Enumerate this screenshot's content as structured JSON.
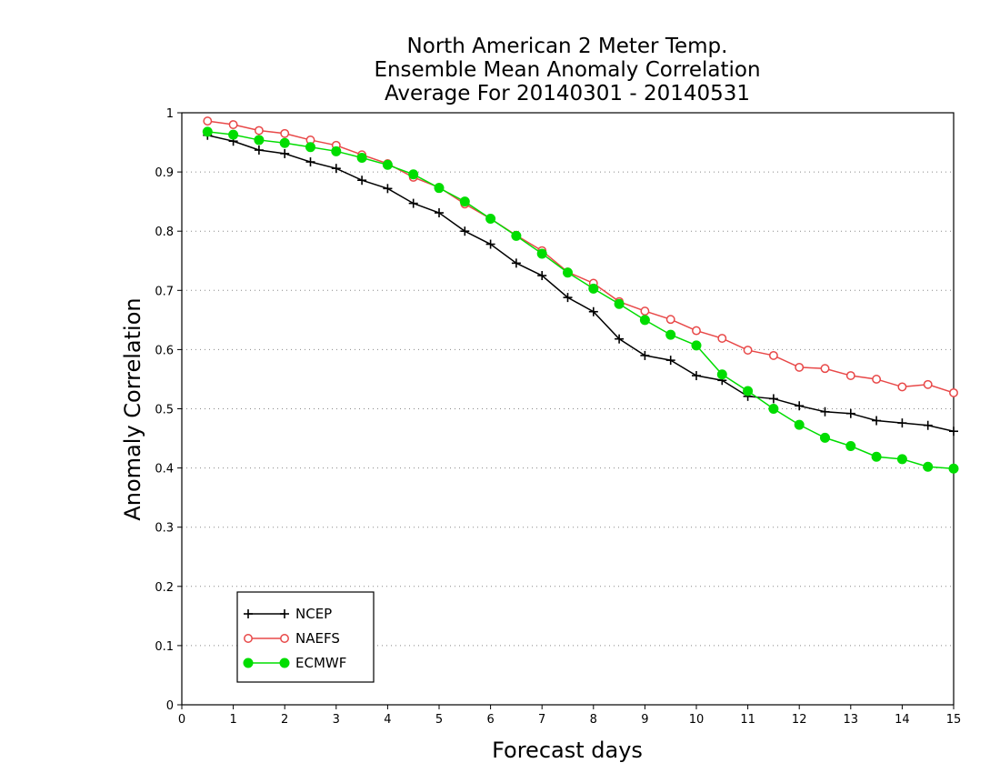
{
  "chart_data": {
    "type": "line",
    "title_lines": [
      "North American 2 Meter Temp.",
      "Ensemble Mean Anomaly Correlation",
      "Average For 20140301 - 20140531"
    ],
    "xlabel": "Forecast days",
    "ylabel": "Anomaly Correlation",
    "xlim": [
      0,
      15
    ],
    "ylim": [
      0,
      1
    ],
    "x_ticks": [
      0,
      1,
      2,
      3,
      4,
      5,
      6,
      7,
      8,
      9,
      10,
      11,
      12,
      13,
      14,
      15
    ],
    "y_ticks": [
      0,
      0.1,
      0.2,
      0.3,
      0.4,
      0.5,
      0.6,
      0.7,
      0.8,
      0.9,
      1
    ],
    "y_tick_labels": [
      "0",
      "0.1",
      "0.2",
      "0.3",
      "0.4",
      "0.5",
      "0.6",
      "0.7",
      "0.8",
      "0.9",
      "1"
    ],
    "grid": "horizontal dotted",
    "legend_placement": "bottom-left",
    "x": [
      0.5,
      1,
      1.5,
      2,
      2.5,
      3,
      3.5,
      4,
      4.5,
      5,
      5.5,
      6,
      6.5,
      7,
      7.5,
      8,
      8.5,
      9,
      9.5,
      10,
      10.5,
      11,
      11.5,
      12,
      12.5,
      13,
      13.5,
      14,
      14.5,
      15
    ],
    "series": [
      {
        "name": "NCEP",
        "color": "#000000",
        "marker": "plus",
        "values": [
          0.962,
          0.952,
          0.937,
          0.931,
          0.917,
          0.906,
          0.886,
          0.872,
          0.847,
          0.831,
          0.8,
          0.778,
          0.746,
          0.725,
          0.688,
          0.664,
          0.618,
          0.59,
          0.582,
          0.556,
          0.548,
          0.521,
          0.517,
          0.505,
          0.495,
          0.492,
          0.48,
          0.476,
          0.472,
          0.462
        ]
      },
      {
        "name": "NAEFS",
        "color": "#e84848",
        "marker": "open-circle",
        "values": [
          0.986,
          0.98,
          0.97,
          0.965,
          0.954,
          0.945,
          0.929,
          0.914,
          0.891,
          0.874,
          0.846,
          0.821,
          0.793,
          0.767,
          0.731,
          0.712,
          0.681,
          0.665,
          0.651,
          0.632,
          0.619,
          0.599,
          0.59,
          0.57,
          0.568,
          0.556,
          0.55,
          0.537,
          0.541,
          0.527
        ]
      },
      {
        "name": "ECMWF",
        "color": "#00dd00",
        "marker": "filled-circle",
        "values": [
          0.968,
          0.963,
          0.954,
          0.949,
          0.942,
          0.935,
          0.924,
          0.912,
          0.896,
          0.873,
          0.85,
          0.821,
          0.792,
          0.762,
          0.73,
          0.703,
          0.677,
          0.65,
          0.625,
          0.607,
          0.558,
          0.53,
          0.5,
          0.473,
          0.451,
          0.437,
          0.419,
          0.415,
          0.402,
          0.399
        ]
      }
    ]
  }
}
